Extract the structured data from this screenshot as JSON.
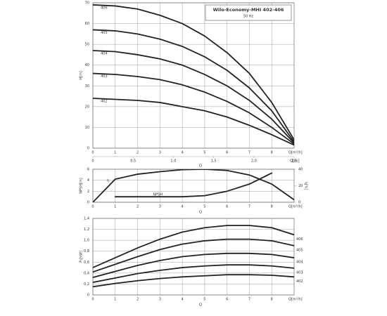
{
  "chart_data": [
    {
      "type": "line",
      "title": "Wilo-Economy-MHI 402-406",
      "subtitle": "50 Hz",
      "ylabel": "H[m]",
      "xlabel": "Q",
      "xunit": "Q[m³/h]",
      "x2unit": "Q[l/s]",
      "x": [
        0,
        1,
        2,
        3,
        4,
        5,
        6,
        7,
        8,
        9
      ],
      "xlim": [
        0,
        9
      ],
      "xticks": [
        0,
        1,
        2,
        3,
        4,
        5,
        6,
        7,
        8
      ],
      "x2lim": [
        0,
        2.5
      ],
      "x2ticks": [
        0,
        {
          "value": 0.5,
          "label": "0,5"
        },
        {
          "value": 1,
          "label": "1,0"
        },
        {
          "value": 1.5,
          "label": "1,5"
        },
        {
          "value": 2,
          "label": "2,0"
        },
        {
          "value": 2.5,
          "label": "2,5"
        }
      ],
      "ylim": [
        0,
        70
      ],
      "yticks": [
        0,
        10,
        20,
        30,
        40,
        50,
        60,
        70
      ],
      "grid": true,
      "series": [
        {
          "name": "406",
          "color": "#222222",
          "values": [
            69,
            68.5,
            67,
            64,
            60,
            54,
            46,
            36,
            22,
            4
          ]
        },
        {
          "name": "405",
          "color": "#222222",
          "values": [
            57,
            56.5,
            55,
            52.5,
            49,
            44,
            37.5,
            29,
            18,
            3
          ]
        },
        {
          "name": "404",
          "color": "#222222",
          "values": [
            47,
            46.5,
            45,
            43,
            40,
            35.5,
            30,
            23,
            14,
            2.5
          ]
        },
        {
          "name": "403",
          "color": "#222222",
          "values": [
            36,
            35.5,
            34.5,
            33,
            30.5,
            27,
            22.5,
            17,
            10,
            2
          ]
        },
        {
          "name": "402",
          "color": "#222222",
          "values": [
            24,
            23.5,
            23,
            22,
            20,
            18,
            15,
            11,
            6.5,
            1.5
          ]
        }
      ]
    },
    {
      "type": "line",
      "ylabel": "NPSH[m]",
      "y2label": "η[%]",
      "xlabel": "Q",
      "xunit": "Q[m³/h]",
      "x": [
        0,
        1,
        2,
        3,
        4,
        5,
        6,
        7,
        8,
        9
      ],
      "xlim": [
        0,
        9
      ],
      "xticks": [
        0,
        1,
        2,
        3,
        4,
        5,
        6,
        7,
        8
      ],
      "ylim": [
        0,
        6
      ],
      "yticks": [
        0,
        2,
        4,
        6
      ],
      "y2lim": [
        0,
        40
      ],
      "y2ticks": [
        0,
        20,
        40
      ],
      "grid": true,
      "series": [
        {
          "name": "NPSH",
          "color": "#222222",
          "values": [
            null,
            1,
            1,
            1,
            1,
            1.2,
            2,
            3.3,
            5.3,
            null
          ]
        },
        {
          "name": "η",
          "color": "#222222",
          "axis": "y2",
          "values": [
            0,
            28,
            34,
            37,
            39.5,
            40,
            38.5,
            33,
            22,
            3
          ]
        }
      ]
    },
    {
      "type": "line",
      "ylabel": "P₂[kW]",
      "xlabel": "Q",
      "xunit": "Q[m³/h]",
      "x": [
        0,
        1,
        2,
        3,
        4,
        5,
        6,
        7,
        8,
        9
      ],
      "xlim": [
        0,
        9
      ],
      "xticks": [
        0,
        1,
        2,
        3,
        4,
        5,
        6,
        7,
        8
      ],
      "ylim": [
        0,
        1.4
      ],
      "yticks": [
        0,
        {
          "value": 0.2,
          "label": "0,2"
        },
        {
          "value": 0.4,
          "label": "0,4"
        },
        {
          "value": 0.6,
          "label": "0,6"
        },
        {
          "value": 0.8,
          "label": "0,8"
        },
        {
          "value": 1,
          "label": "1,0"
        },
        {
          "value": 1.2,
          "label": "1,2"
        },
        {
          "value": 1.4,
          "label": "1,4"
        }
      ],
      "grid": true,
      "series": [
        {
          "name": "406",
          "color": "#222222",
          "values": [
            0.5,
            0.68,
            0.86,
            1.02,
            1.15,
            1.23,
            1.27,
            1.27,
            1.23,
            1.1
          ]
        },
        {
          "name": "405",
          "color": "#222222",
          "values": [
            0.42,
            0.56,
            0.7,
            0.83,
            0.93,
            0.99,
            1.02,
            1.02,
            0.99,
            0.9
          ]
        },
        {
          "name": "404",
          "color": "#222222",
          "values": [
            0.32,
            0.43,
            0.54,
            0.63,
            0.7,
            0.74,
            0.76,
            0.76,
            0.74,
            0.68
          ]
        },
        {
          "name": "403",
          "color": "#222222",
          "values": [
            0.23,
            0.31,
            0.39,
            0.45,
            0.5,
            0.53,
            0.55,
            0.55,
            0.53,
            0.49
          ]
        },
        {
          "name": "402",
          "color": "#222222",
          "values": [
            0.15,
            0.21,
            0.26,
            0.3,
            0.33,
            0.35,
            0.37,
            0.37,
            0.36,
            0.33
          ]
        }
      ]
    }
  ]
}
